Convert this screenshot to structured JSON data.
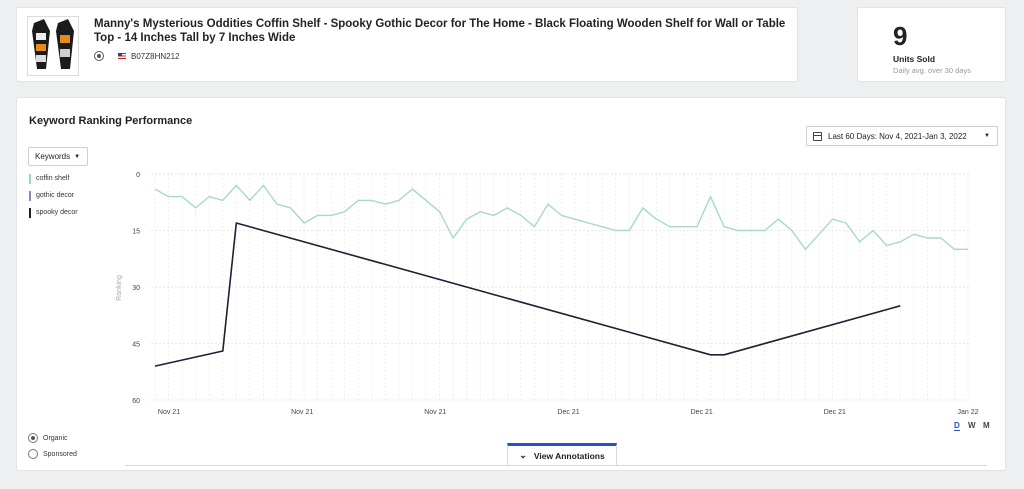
{
  "product": {
    "title": "Manny's Mysterious Oddities Coffin Shelf - Spooky Gothic Decor for The Home - Black Floating Wooden Shelf for Wall or Table Top - 14 Inches Tall by 7 Inches Wide",
    "asin": "B07Z8HN212",
    "marketplace_icon": "us-flag-icon"
  },
  "units": {
    "value": "9",
    "label": "Units Sold",
    "sub": "Daily avg. over 30 days"
  },
  "chart_panel": {
    "title": "Keyword Ranking Performance",
    "date_range": "Last 60 Days: Nov 4, 2021-Jan 3, 2022",
    "keywords_button": "Keywords",
    "legend": [
      {
        "label": "coffin shelf",
        "color": "#9fd3cf"
      },
      {
        "label": "gothic decor",
        "color": "#7d8fb8"
      },
      {
        "label": "spooky decor",
        "color": "#1f1a2e"
      }
    ],
    "type_options": [
      {
        "label": "Organic",
        "selected": true
      },
      {
        "label": "Sponsored",
        "selected": false
      }
    ],
    "granularity": [
      "D",
      "W",
      "M"
    ],
    "active_granularity": "D",
    "annotations_button": "View Annotations"
  },
  "chart_data": {
    "type": "line",
    "ylabel": "Ranking",
    "ylim": [
      60,
      0
    ],
    "yticks": [
      0,
      15,
      30,
      45,
      60
    ],
    "x_tick_labels": [
      "Nov 21",
      "Nov 21",
      "Nov 21",
      "Dec 21",
      "Dec 21",
      "Dec 21",
      "Jan 22"
    ],
    "x": [
      "Nov 4",
      "Nov 5",
      "Nov 6",
      "Nov 7",
      "Nov 8",
      "Nov 9",
      "Nov 10",
      "Nov 11",
      "Nov 12",
      "Nov 13",
      "Nov 14",
      "Nov 15",
      "Nov 16",
      "Nov 17",
      "Nov 18",
      "Nov 19",
      "Nov 20",
      "Nov 21",
      "Nov 22",
      "Nov 23",
      "Nov 24",
      "Nov 25",
      "Nov 26",
      "Nov 27",
      "Nov 28",
      "Nov 29",
      "Nov 30",
      "Dec 1",
      "Dec 2",
      "Dec 3",
      "Dec 4",
      "Dec 5",
      "Dec 6",
      "Dec 7",
      "Dec 8",
      "Dec 9",
      "Dec 10",
      "Dec 11",
      "Dec 12",
      "Dec 13",
      "Dec 14",
      "Dec 15",
      "Dec 16",
      "Dec 17",
      "Dec 18",
      "Dec 19",
      "Dec 20",
      "Dec 21",
      "Dec 22",
      "Dec 23",
      "Dec 24",
      "Dec 25",
      "Dec 26",
      "Dec 27",
      "Dec 28",
      "Dec 29",
      "Dec 30",
      "Dec 31",
      "Jan 1",
      "Jan 2",
      "Jan 3"
    ],
    "grid": true,
    "series": [
      {
        "name": "coffin shelf",
        "values": [
          4,
          6,
          6,
          9,
          6,
          7,
          3,
          7,
          3,
          8,
          9,
          13,
          11,
          11,
          10,
          7,
          7,
          8,
          7,
          4,
          7,
          10,
          17,
          12,
          10,
          11,
          9,
          11,
          14,
          8,
          11,
          12,
          13,
          14,
          15,
          15,
          9,
          12,
          14,
          14,
          14,
          6,
          14,
          15,
          15,
          15,
          12,
          15,
          20,
          16,
          12,
          13,
          18,
          15,
          19,
          18,
          16,
          17,
          17,
          20,
          20
        ]
      },
      {
        "name": "spooky decor",
        "values": [
          51,
          null,
          null,
          null,
          null,
          47,
          13,
          null,
          null,
          null,
          null,
          null,
          null,
          null,
          null,
          null,
          null,
          null,
          null,
          null,
          null,
          null,
          null,
          null,
          null,
          null,
          null,
          null,
          null,
          null,
          null,
          null,
          null,
          null,
          null,
          null,
          null,
          null,
          null,
          null,
          null,
          48,
          48,
          null,
          null,
          null,
          null,
          null,
          null,
          null,
          null,
          null,
          null,
          null,
          null,
          35,
          null,
          null,
          null,
          null,
          null
        ]
      }
    ]
  }
}
